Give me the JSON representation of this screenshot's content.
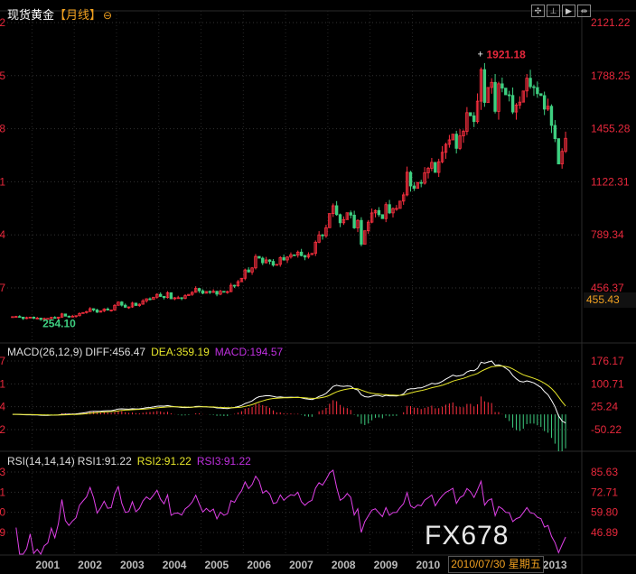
{
  "header": {
    "title": "现货黄金",
    "period": "【月线】",
    "zoom_icon": "zoom-circle-icon"
  },
  "toolbar": [
    {
      "icon": "crosshair-icon",
      "glyph": "✣"
    },
    {
      "icon": "range-icon",
      "glyph": "⊥"
    },
    {
      "icon": "play-icon",
      "glyph": "▶"
    },
    {
      "icon": "fit-icon",
      "glyph": "⇹"
    }
  ],
  "macd_header": {
    "name": "MACD(26,12,9)",
    "diff": "DIFF:456.47",
    "dea": "DEA:359.19",
    "macd": "MACD:194.57"
  },
  "rsi_header": {
    "name": "RSI(14,14,14)",
    "rsi1": "RSI1:91.22",
    "rsi2": "RSI2:91.22",
    "rsi3": "RSI3:91.22"
  },
  "crosshair_date": "2010/07/30 星期五",
  "watermark": "FX678",
  "last_price": "455.43",
  "colors": {
    "up": "#ff3040",
    "down": "#3ecf80",
    "axis": "#e8283c",
    "dea": "#e6e62a",
    "diff": "#ffffff",
    "rsi": "#e040e8",
    "label_orange": "#f0a020"
  },
  "chart_data": {
    "type": "candlestick",
    "interval": "monthly",
    "start": "2000-07",
    "closes": [
      276,
      277,
      273,
      264,
      270,
      273,
      266,
      267,
      258,
      264,
      265,
      271,
      266,
      273,
      293,
      279,
      275,
      279,
      282,
      296,
      302,
      308,
      326,
      318,
      304,
      312,
      324,
      317,
      318,
      347,
      368,
      348,
      335,
      337,
      361,
      346,
      354,
      375,
      388,
      384,
      398,
      416,
      403,
      396,
      426,
      388,
      394,
      395,
      391,
      408,
      416,
      429,
      453,
      438,
      423,
      434,
      428,
      435,
      417,
      435,
      429,
      433,
      473,
      470,
      495,
      517,
      569,
      556,
      582,
      654,
      643,
      614,
      632,
      623,
      599,
      604,
      646,
      632,
      650,
      664,
      662,
      681,
      659,
      650,
      665,
      673,
      743,
      789,
      783,
      834,
      923,
      972,
      916,
      865,
      885,
      928,
      913,
      833,
      880,
      730,
      815,
      869,
      927,
      942,
      916,
      891,
      979,
      927,
      954,
      955,
      1001,
      1040,
      1182,
      1096,
      1081,
      1118,
      1113,
      1179,
      1207,
      1244,
      1181,
      1248,
      1307,
      1357,
      1385,
      1421,
      1332,
      1410,
      1439,
      1556,
      1536,
      1500,
      1628,
      1826,
      1620,
      1714,
      1746,
      1564,
      1737,
      1710,
      1668,
      1664,
      1560,
      1604,
      1622,
      1692,
      1772,
      1719,
      1713,
      1675,
      1663,
      1578,
      1596,
      1476,
      1393,
      1234,
      1313,
      1395
    ],
    "max_label": "1921.18",
    "min_label": "254.10",
    "price_axis": [
      "2121.22",
      "1788.25",
      "1455.28",
      "1122.31",
      "789.34",
      "456.37"
    ],
    "price_ylim": [
      456.37,
      2121.22
    ],
    "macd_axis": [
      "176.17",
      "100.71",
      "25.24",
      "-50.22"
    ],
    "macd_ylim": [
      -50.22,
      176.17
    ],
    "rsi_axis": [
      "85.63",
      "72.71",
      "59.80",
      "46.89"
    ],
    "rsi_ylim": [
      46.89,
      85.63
    ],
    "x_ticks": [
      "2001",
      "2002",
      "2003",
      "2004",
      "2005",
      "2006",
      "2007",
      "2008",
      "2009",
      "2010",
      "2013"
    ],
    "grid": true
  }
}
